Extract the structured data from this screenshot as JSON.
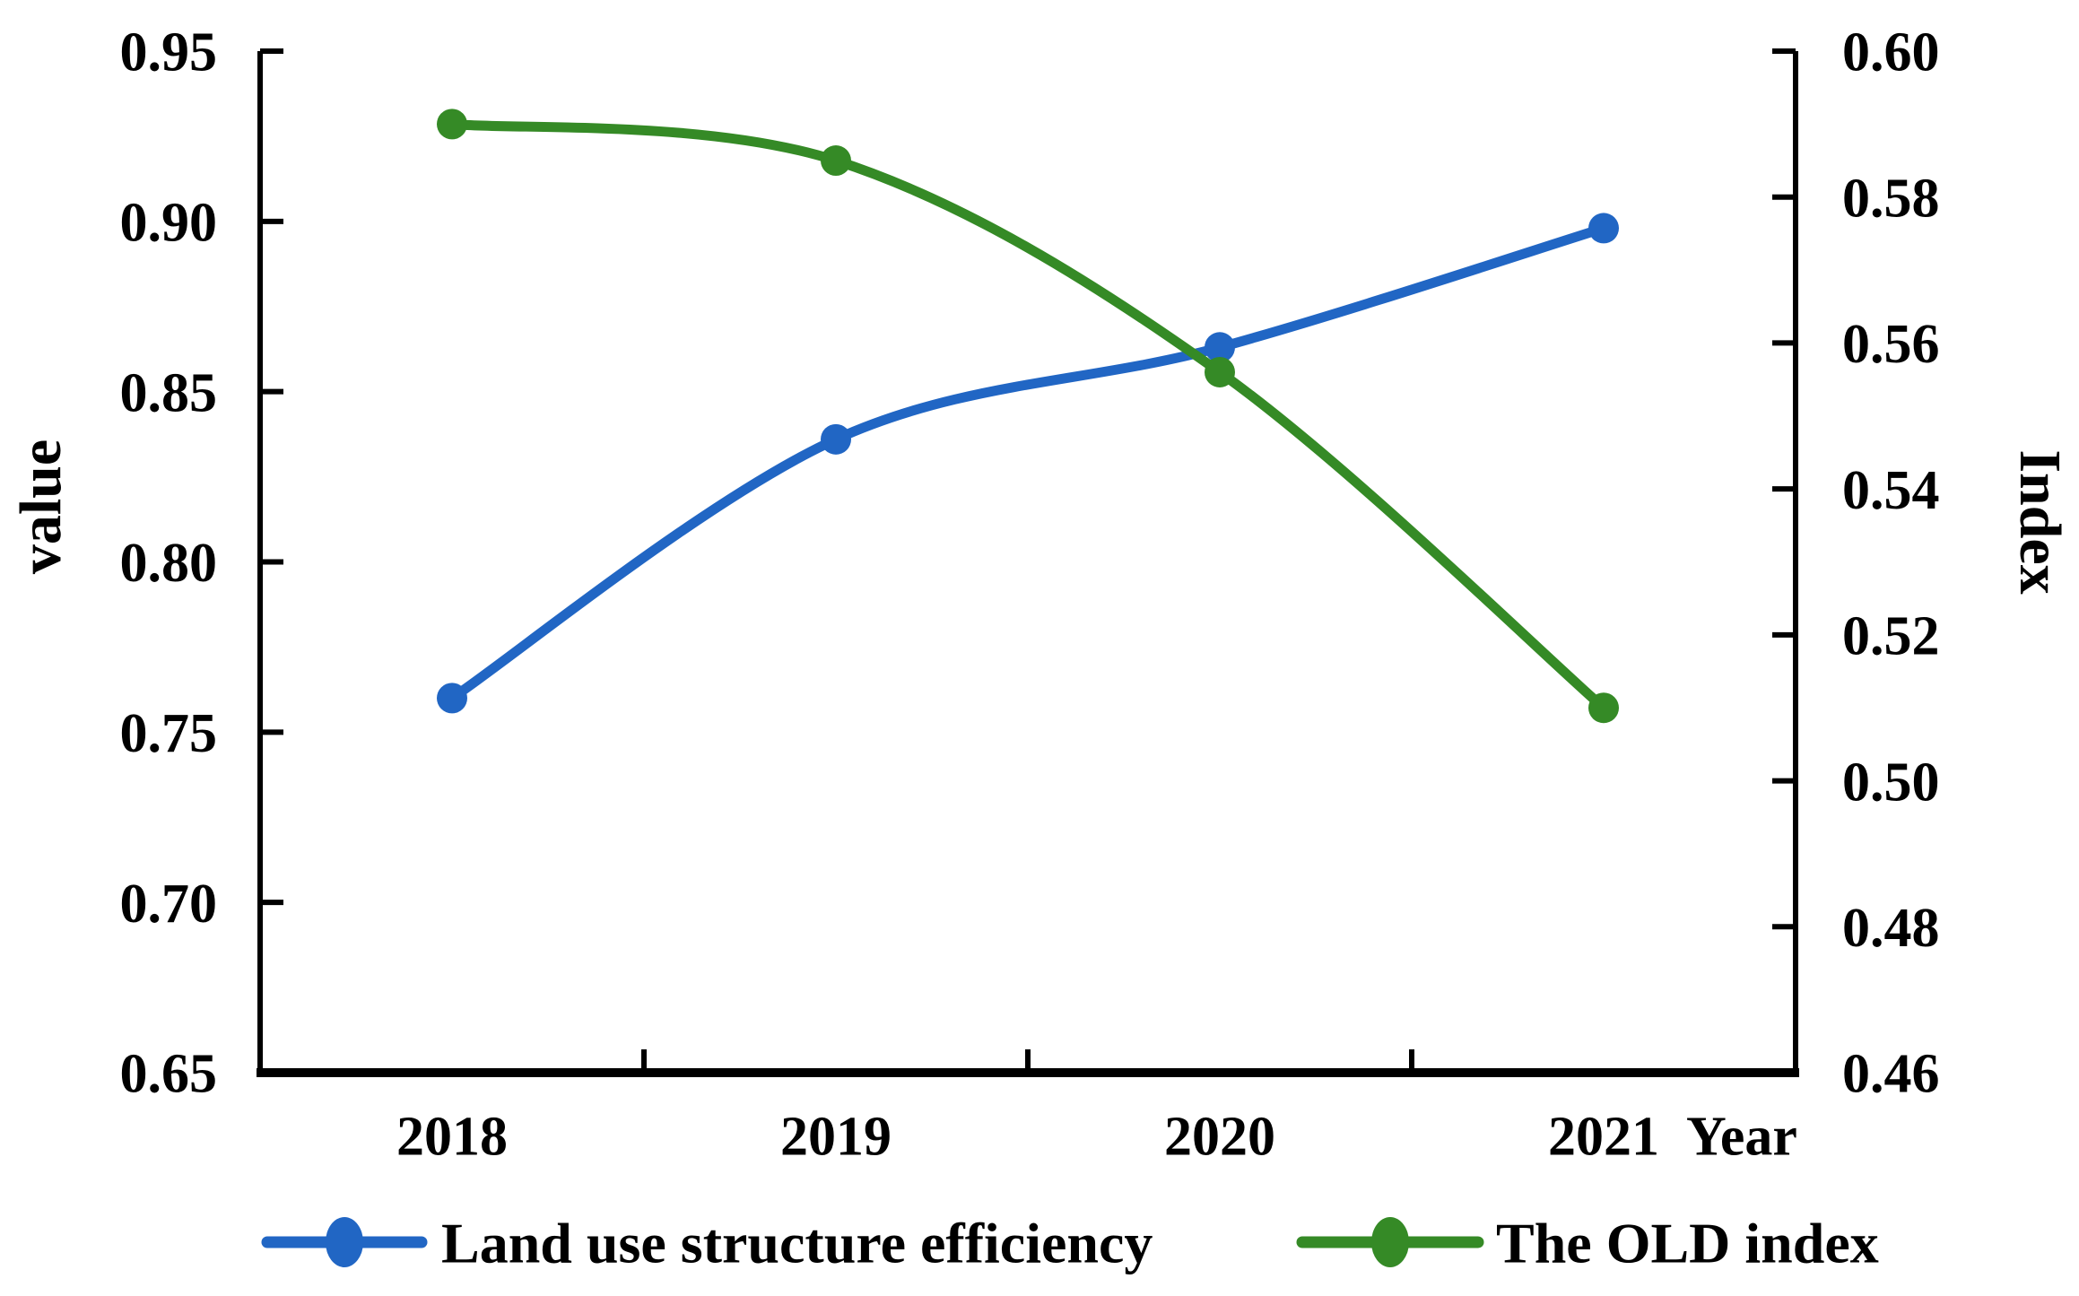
{
  "figure": {
    "background": "#ffffff",
    "axis_color": "#000000"
  },
  "chart_data": {
    "type": "line",
    "x": [
      "2018",
      "2019",
      "2020",
      "2021"
    ],
    "xlabel": "Year",
    "grid": false,
    "legend_position": "bottom",
    "left_axis": {
      "title": "value",
      "min": 0.65,
      "max": 0.95,
      "ticks": [
        "0.95",
        "0.90",
        "0.85",
        "0.80",
        "0.75",
        "0.70",
        "0.65"
      ]
    },
    "right_axis": {
      "title": "Index",
      "min": 0.46,
      "max": 0.6,
      "ticks": [
        "0.60",
        "0.58",
        "0.56",
        "0.54",
        "0.52",
        "0.50",
        "0.48",
        "0.46"
      ]
    },
    "series": [
      {
        "name": "Land use structure efficiency",
        "axis": "left",
        "color": "#2166C4",
        "marker": "circle",
        "values": [
          0.76,
          0.836,
          0.863,
          0.898
        ]
      },
      {
        "name": "The OLD index",
        "axis": "right",
        "color": "#358A26",
        "marker": "circle",
        "values": [
          0.59,
          0.585,
          0.556,
          0.51
        ]
      }
    ]
  }
}
